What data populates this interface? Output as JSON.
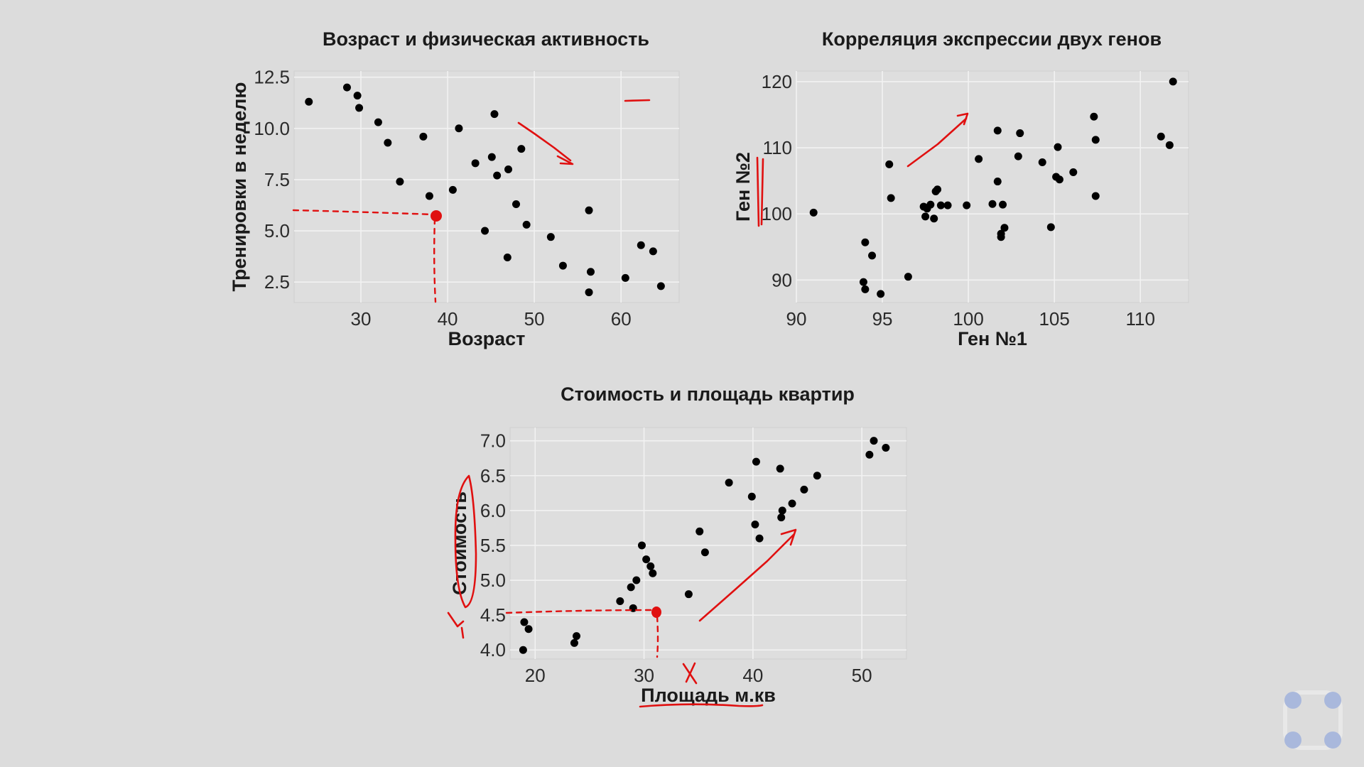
{
  "chart_data": [
    {
      "type": "scatter",
      "title": "Возраст и физическая активность",
      "xlabel": "Возраст",
      "ylabel": "Тренировки в неделю",
      "xlim": [
        22.3,
        66.7
      ],
      "ylim": [
        1.5,
        12.8
      ],
      "xticks": [
        "30",
        "40",
        "50",
        "60"
      ],
      "yticks": [
        "2.5",
        "5.0",
        "7.5",
        "10.0",
        "12.5"
      ],
      "grid": true,
      "x": [
        24.0,
        28.4,
        29.6,
        29.8,
        32.0,
        33.1,
        34.5,
        37.2,
        37.9,
        38.8,
        40.6,
        41.3,
        43.2,
        44.3,
        45.1,
        45.4,
        45.7,
        46.9,
        47.0,
        47.9,
        48.5,
        49.1,
        51.9,
        53.3,
        56.3,
        56.5,
        56.3,
        60.5,
        62.3,
        63.7,
        64.6
      ],
      "y": [
        11.3,
        12.0,
        11.6,
        11.0,
        10.3,
        9.3,
        7.4,
        9.6,
        6.7,
        5.7,
        7.0,
        10.0,
        8.3,
        5.0,
        8.6,
        10.7,
        7.7,
        3.7,
        8.0,
        6.3,
        9.0,
        5.3,
        4.7,
        3.3,
        6.0,
        3.0,
        2.0,
        2.7,
        4.3,
        4.0,
        2.3
      ]
    },
    {
      "type": "scatter",
      "title": "Корреляция экспрессии двух генов",
      "xlabel": "Ген №1",
      "ylabel": "Ген №2",
      "xlim": [
        90.0,
        112.8
      ],
      "ylim": [
        86.6,
        121.6
      ],
      "xticks": [
        "90",
        "95",
        "100",
        "105",
        "110"
      ],
      "yticks": [
        "90",
        "100",
        "110",
        "120"
      ],
      "grid": true,
      "x": [
        91.0,
        93.9,
        94.0,
        94.0,
        94.4,
        94.9,
        95.4,
        95.5,
        96.5,
        97.4,
        97.5,
        97.6,
        97.8,
        98.0,
        98.1,
        98.2,
        98.4,
        98.8,
        99.9,
        100.6,
        101.4,
        101.7,
        101.7,
        101.9,
        101.9,
        102.0,
        102.1,
        102.9,
        103.0,
        104.3,
        104.8,
        105.1,
        105.2,
        105.3,
        106.1,
        107.3,
        107.4,
        107.4,
        111.2,
        111.7,
        111.9
      ],
      "y": [
        100.2,
        89.7,
        88.6,
        95.7,
        93.7,
        87.9,
        107.5,
        102.4,
        90.5,
        101.1,
        99.6,
        100.8,
        101.4,
        99.3,
        103.4,
        103.7,
        101.3,
        101.3,
        101.3,
        108.3,
        101.5,
        112.6,
        104.9,
        96.5,
        97.0,
        101.4,
        97.9,
        108.7,
        112.2,
        107.8,
        98.0,
        105.6,
        110.1,
        105.2,
        106.3,
        114.7,
        111.2,
        102.7,
        111.7,
        110.4,
        120.0
      ]
    },
    {
      "type": "scatter",
      "title": "Стоимость и площадь квартир",
      "xlabel": "Площадь м.кв",
      "ylabel": "Стоимость",
      "xlim": [
        17.7,
        54.1
      ],
      "ylim": [
        3.87,
        7.19
      ],
      "xticks": [
        "20",
        "30",
        "40",
        "50"
      ],
      "yticks": [
        "4.0",
        "4.5",
        "5.0",
        "5.5",
        "6.0",
        "6.5",
        "7.0"
      ],
      "grid": true,
      "x": [
        18.9,
        19.0,
        19.4,
        23.6,
        23.8,
        27.8,
        28.8,
        29.0,
        29.3,
        29.8,
        30.2,
        30.6,
        30.8,
        34.1,
        35.1,
        35.6,
        37.8,
        39.9,
        40.2,
        40.3,
        40.6,
        42.5,
        42.6,
        42.7,
        43.6,
        44.7,
        45.9,
        50.7,
        51.1,
        52.2
      ],
      "y": [
        4.0,
        4.4,
        4.3,
        4.1,
        4.2,
        4.7,
        4.9,
        4.6,
        5.0,
        5.5,
        5.3,
        5.2,
        5.1,
        4.8,
        5.7,
        5.4,
        6.4,
        6.2,
        5.8,
        6.7,
        5.6,
        6.6,
        5.9,
        6.0,
        6.1,
        6.3,
        6.5,
        6.8,
        7.0,
        6.9
      ]
    }
  ],
  "widget": {
    "icon": "four-dots-rounded-square-icon",
    "dot_color": "#a9b8dc"
  },
  "ink_color": "#e01010"
}
